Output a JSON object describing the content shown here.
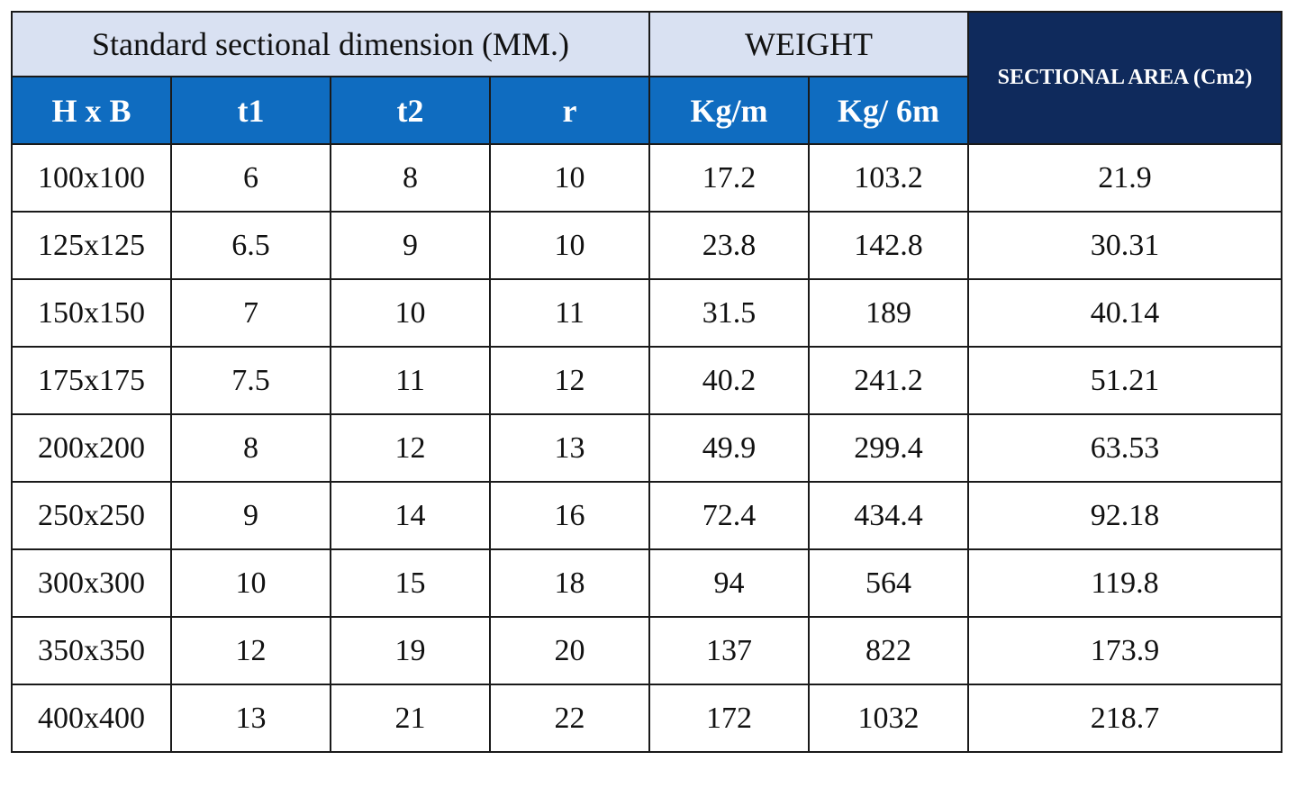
{
  "header": {
    "group_dimension": "Standard sectional dimension (MM.)",
    "group_weight": "WEIGHT",
    "sectional_area": "SECTIONAL AREA (Cm2)",
    "columns": [
      "H x B",
      "t1",
      "t2",
      "r",
      "Kg/m",
      "Kg/ 6m"
    ]
  },
  "colors": {
    "group_header_bg": "#d9e1f2",
    "sub_header_bg": "#0f6cc0",
    "area_header_bg": "#0f2a5c"
  },
  "rows": [
    [
      "100x100",
      "6",
      "8",
      "10",
      "17.2",
      "103.2",
      "21.9"
    ],
    [
      "125x125",
      "6.5",
      "9",
      "10",
      "23.8",
      "142.8",
      "30.31"
    ],
    [
      "150x150",
      "7",
      "10",
      "11",
      "31.5",
      "189",
      "40.14"
    ],
    [
      "175x175",
      "7.5",
      "11",
      "12",
      "40.2",
      "241.2",
      "51.21"
    ],
    [
      "200x200",
      "8",
      "12",
      "13",
      "49.9",
      "299.4",
      "63.53"
    ],
    [
      "250x250",
      "9",
      "14",
      "16",
      "72.4",
      "434.4",
      "92.18"
    ],
    [
      "300x300",
      "10",
      "15",
      "18",
      "94",
      "564",
      "119.8"
    ],
    [
      "350x350",
      "12",
      "19",
      "20",
      "137",
      "822",
      "173.9"
    ],
    [
      "400x400",
      "13",
      "21",
      "22",
      "172",
      "1032",
      "218.7"
    ]
  ]
}
